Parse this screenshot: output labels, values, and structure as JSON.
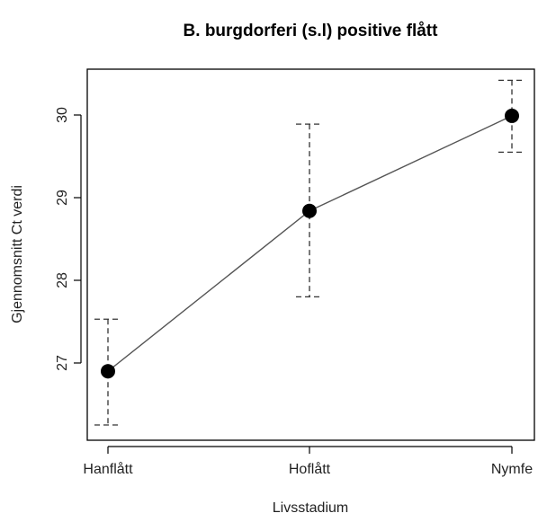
{
  "chart_data": {
    "type": "line",
    "title": "B. burgdorferi (s.l) positive flått",
    "xlabel": "Livsstadium",
    "ylabel": "Gjennomsnitt Ct verdi",
    "categories": [
      "Hanflått",
      "Hoflått",
      "Nymfe"
    ],
    "series": [
      {
        "values": [
          26.9,
          28.84,
          29.99
        ],
        "error_low": [
          26.25,
          27.8,
          29.55
        ],
        "error_high": [
          27.53,
          29.89,
          30.42
        ],
        "error_style": "dashed"
      }
    ],
    "yticks": [
      27,
      28,
      29,
      30
    ],
    "ylim": [
      26.08,
      30.6
    ],
    "grid": false,
    "legend": "none",
    "colors": {
      "line": "#555555",
      "point": "#000000",
      "errorbar": "#333333",
      "frame": "#000000"
    }
  }
}
